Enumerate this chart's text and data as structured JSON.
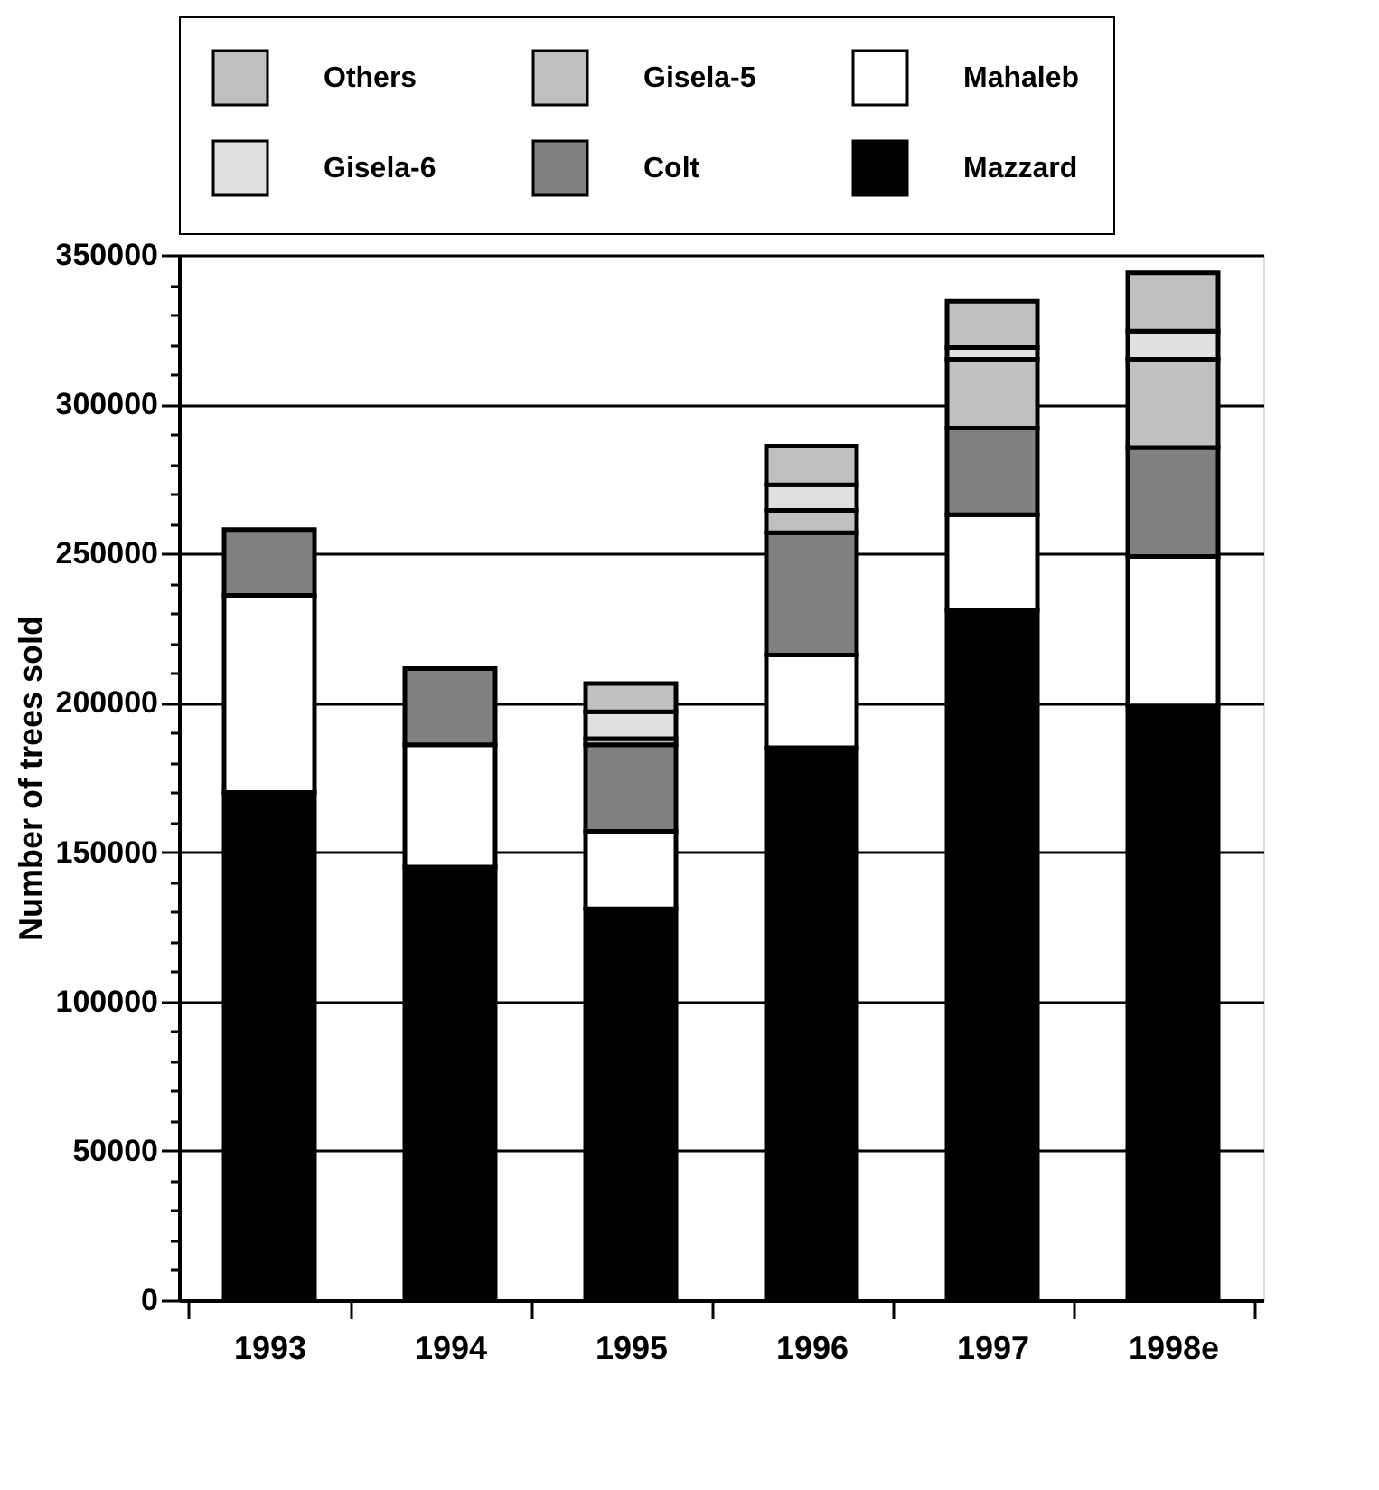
{
  "chart_data": {
    "type": "bar",
    "stacked": true,
    "ylabel": "Number of trees sold",
    "categories": [
      "1993",
      "1994",
      "1995",
      "1996",
      "1997",
      "1998e"
    ],
    "series": [
      {
        "name": "Mazzard",
        "color": "#000000",
        "values": [
          170000,
          145000,
          131000,
          185000,
          231000,
          199000
        ]
      },
      {
        "name": "Mahaleb",
        "color": "#ffffff",
        "values": [
          66000,
          41000,
          26000,
          31000,
          32000,
          50000
        ]
      },
      {
        "name": "Colt",
        "color": "#808080",
        "values": [
          22000,
          25500,
          29000,
          41000,
          29000,
          36500
        ]
      },
      {
        "name": "Gisela-5",
        "color": "#c0c0c0",
        "values": [
          null,
          null,
          2000,
          7500,
          23000,
          29500
        ]
      },
      {
        "name": "Gisela-6",
        "color": "#e0e0e0",
        "values": [
          null,
          null,
          9000,
          8500,
          4000,
          9500
        ]
      },
      {
        "name": "Others",
        "color": "#c0c0c0",
        "values": [
          null,
          null,
          9500,
          13000,
          15500,
          19500
        ]
      }
    ],
    "ylim": [
      0,
      350000
    ],
    "yticks": [
      0,
      {
        "value": 10000,
        "label": null
      },
      {
        "value": 20000,
        "label": null
      },
      {
        "value": 30000,
        "label": null
      },
      {
        "value": 40000,
        "label": null
      },
      50000,
      {
        "value": 60000,
        "label": null
      },
      {
        "value": 70000,
        "label": null
      },
      {
        "value": 80000,
        "label": null
      },
      {
        "value": 90000,
        "label": null
      },
      100000,
      {
        "value": 110000,
        "label": null
      },
      {
        "value": 120000,
        "label": null
      },
      {
        "value": 130000,
        "label": null
      },
      {
        "value": 140000,
        "label": null
      },
      150000,
      {
        "value": 160000,
        "label": null
      },
      {
        "value": 170000,
        "label": null
      },
      {
        "value": 180000,
        "label": null
      },
      {
        "value": 190000,
        "label": null
      },
      200000,
      {
        "value": 210000,
        "label": null
      },
      {
        "value": 220000,
        "label": null
      },
      {
        "value": 230000,
        "label": null
      },
      {
        "value": 240000,
        "label": null
      },
      250000,
      {
        "value": 260000,
        "label": null
      },
      {
        "value": 270000,
        "label": null
      },
      {
        "value": 280000,
        "label": null
      },
      {
        "value": 290000,
        "label": null
      },
      300000,
      {
        "value": 310000,
        "label": null
      },
      {
        "value": 320000,
        "label": null
      },
      {
        "value": 330000,
        "label": null
      },
      {
        "value": 340000,
        "label": null
      },
      350000
    ],
    "grid": "y",
    "legend": "top"
  }
}
